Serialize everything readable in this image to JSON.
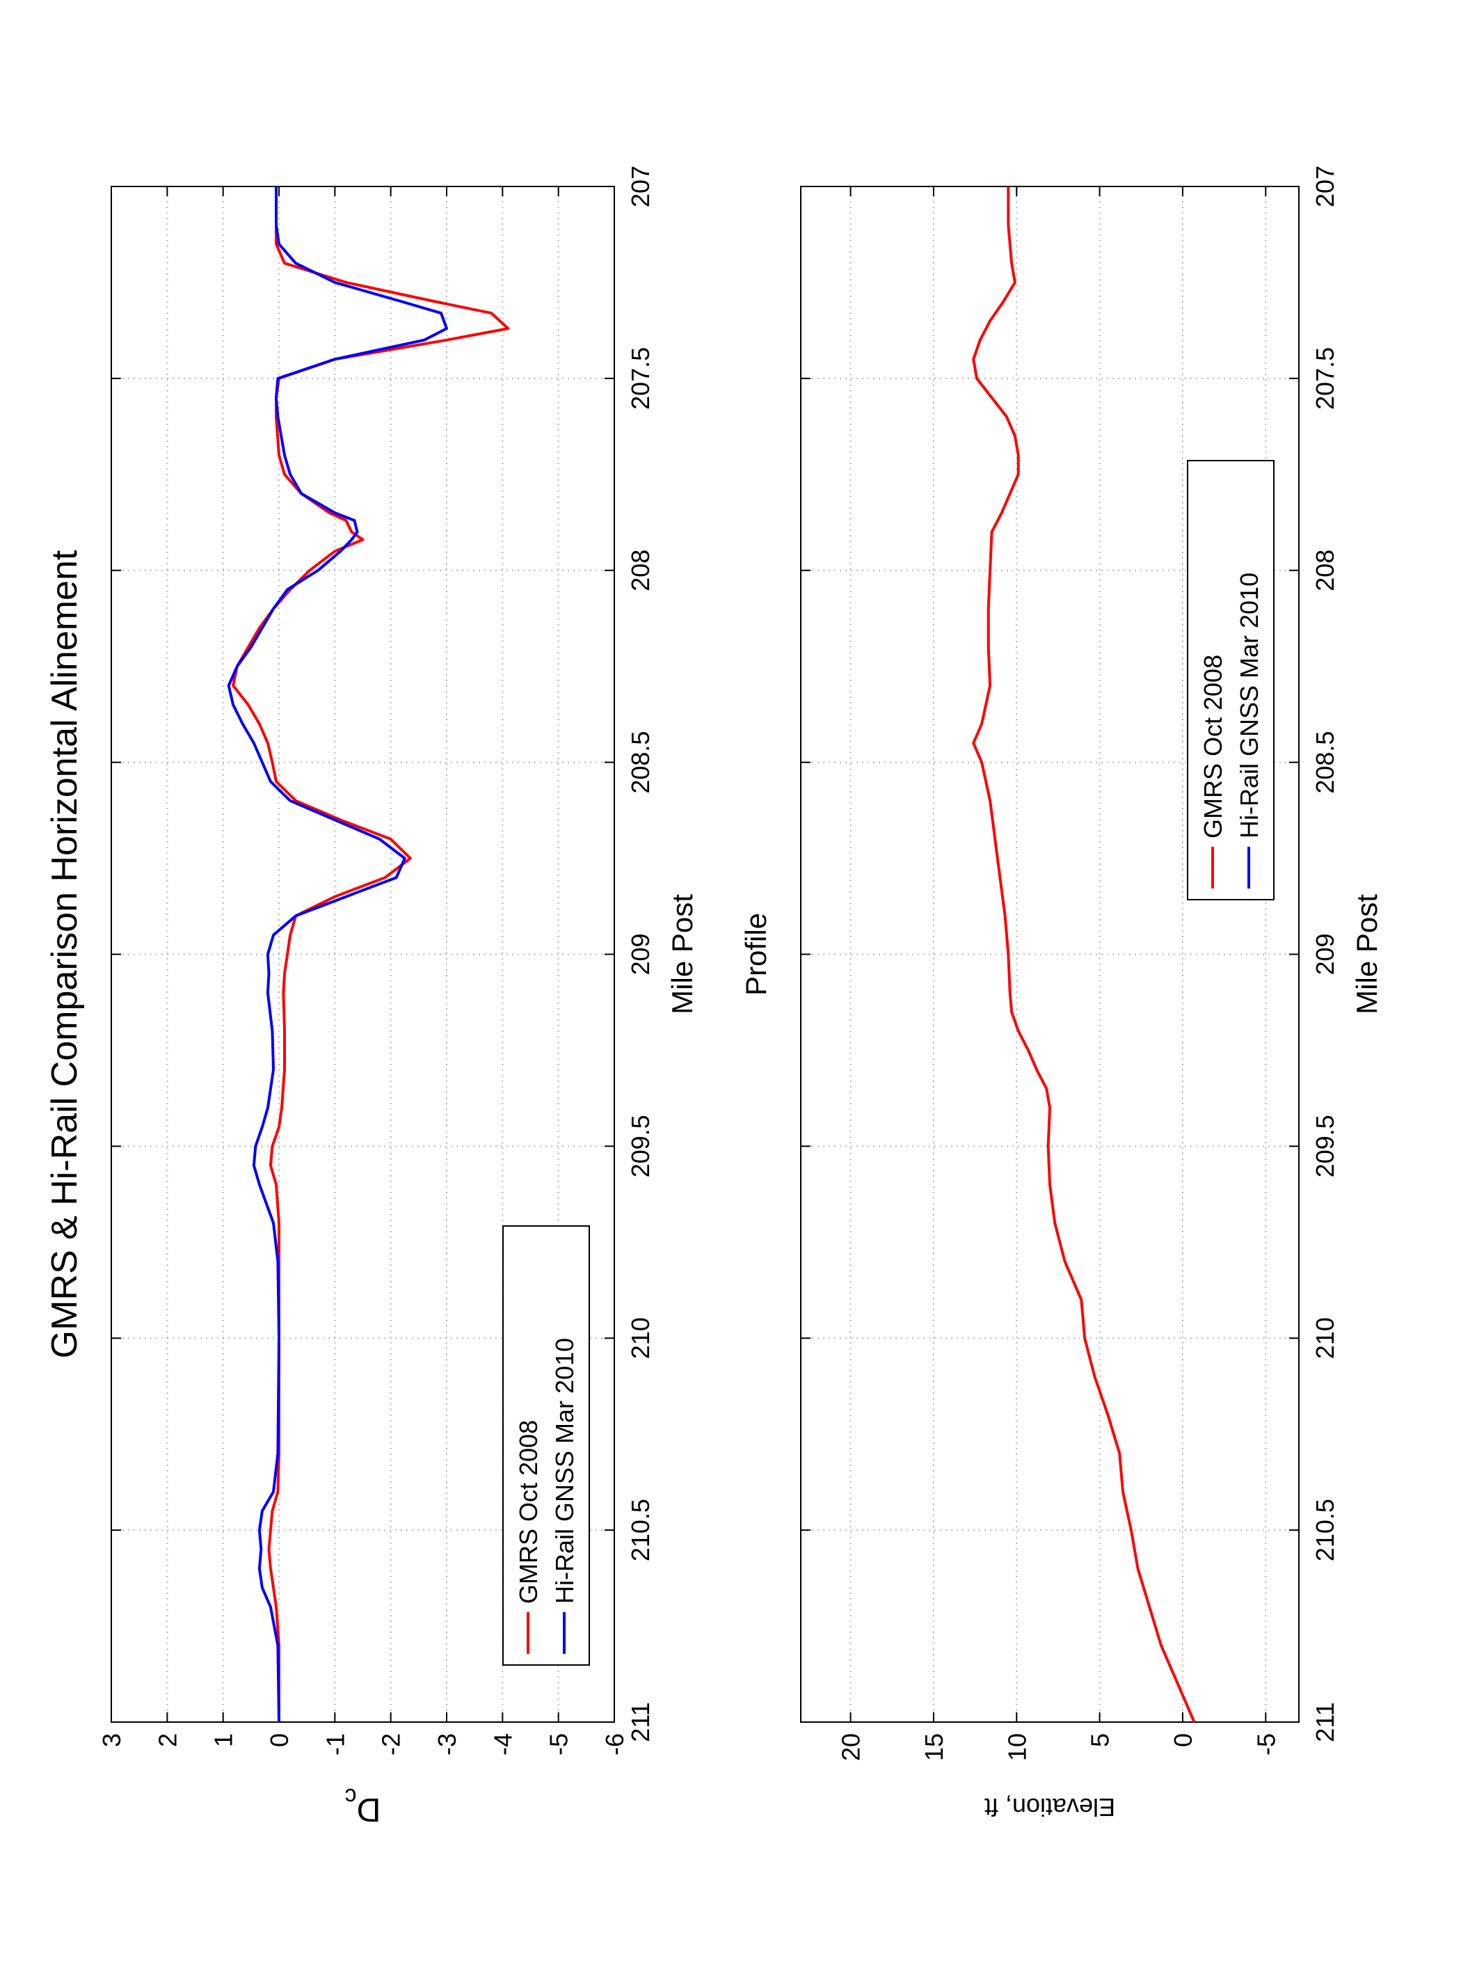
{
  "chart_data": [
    {
      "type": "line",
      "title": "GMRS & Hi-Rail Comparison Horizontal Alinement",
      "xlabel": "Mile Post",
      "ylabel": "D",
      "ylabel_sub": "c",
      "x": [
        211,
        210.8,
        210.7,
        210.65,
        210.6,
        210.55,
        210.5,
        210.45,
        210.4,
        210.3,
        210.0,
        209.8,
        209.7,
        209.6,
        209.55,
        209.5,
        209.45,
        209.4,
        209.3,
        209.2,
        209.1,
        209.05,
        209.0,
        208.95,
        208.9,
        208.85,
        208.8,
        208.75,
        208.7,
        208.65,
        208.6,
        208.55,
        208.5,
        208.45,
        208.4,
        208.35,
        208.3,
        208.25,
        208.2,
        208.15,
        208.1,
        208.05,
        208.0,
        207.95,
        207.92,
        207.9,
        207.87,
        207.85,
        207.8,
        207.75,
        207.7,
        207.6,
        207.55,
        207.5,
        207.45,
        207.4,
        207.37,
        207.33,
        207.3,
        207.25,
        207.2,
        207.15,
        207.1,
        207.0
      ],
      "series": [
        {
          "name": "GMRS Oct 2008",
          "color": "#ff0000",
          "values": [
            0,
            0,
            0.05,
            0.1,
            0.15,
            0.18,
            0.15,
            0.12,
            0.02,
            0,
            0,
            0,
            0,
            0.05,
            0.15,
            0.12,
            0.0,
            -0.05,
            -0.1,
            -0.1,
            -0.08,
            -0.1,
            -0.15,
            -0.2,
            -0.3,
            -1.0,
            -1.9,
            -2.35,
            -2.0,
            -1.1,
            -0.3,
            0.05,
            0.12,
            0.2,
            0.35,
            0.55,
            0.82,
            0.75,
            0.55,
            0.35,
            0.1,
            -0.2,
            -0.55,
            -1.0,
            -1.5,
            -1.3,
            -1.2,
            -0.9,
            -0.4,
            -0.1,
            0.0,
            0.05,
            0.05,
            0.0,
            -1.0,
            -3.0,
            -4.1,
            -3.8,
            -2.8,
            -1.2,
            -0.1,
            0.05,
            0.05,
            0.05
          ]
        },
        {
          "name": "Hi-Rail GNSS Mar 2010",
          "color": "#0000ff",
          "values": [
            0,
            0.02,
            0.15,
            0.3,
            0.35,
            0.32,
            0.35,
            0.3,
            0.1,
            0.02,
            0,
            0.02,
            0.1,
            0.35,
            0.45,
            0.42,
            0.3,
            0.2,
            0.1,
            0.12,
            0.2,
            0.18,
            0.2,
            0.1,
            -0.3,
            -1.2,
            -2.1,
            -2.25,
            -1.8,
            -1.0,
            -0.2,
            0.15,
            0.3,
            0.45,
            0.65,
            0.82,
            0.9,
            0.75,
            0.5,
            0.3,
            0.1,
            -0.15,
            -0.7,
            -1.1,
            -1.3,
            -1.4,
            -1.35,
            -1.0,
            -0.4,
            -0.2,
            -0.1,
            0.02,
            0.05,
            0.02,
            -1.0,
            -2.6,
            -3.0,
            -2.9,
            -2.2,
            -1.0,
            -0.3,
            0.0,
            0.05,
            0.05
          ]
        }
      ],
      "xlim": [
        211,
        207
      ],
      "xticks": [
        211,
        210.5,
        210,
        209.5,
        209,
        208.5,
        208,
        207.5,
        207
      ],
      "ylim": [
        -6,
        3
      ],
      "yticks": [
        3,
        2,
        1,
        0,
        -1,
        -2,
        -3,
        -4,
        -5,
        -6
      ],
      "grid": true,
      "legend": "lower left"
    },
    {
      "type": "line",
      "title": "Profile",
      "xlabel": "Mile Post",
      "ylabel": "Elevation, ft",
      "x": [
        211,
        210.9,
        210.8,
        210.7,
        210.6,
        210.5,
        210.4,
        210.3,
        210.2,
        210.1,
        210.0,
        209.9,
        209.8,
        209.7,
        209.6,
        209.5,
        209.4,
        209.35,
        209.3,
        209.25,
        209.2,
        209.15,
        209.1,
        209.0,
        208.9,
        208.8,
        208.7,
        208.6,
        208.5,
        208.45,
        208.4,
        208.3,
        208.2,
        208.1,
        208.0,
        207.9,
        207.85,
        207.8,
        207.75,
        207.7,
        207.65,
        207.6,
        207.55,
        207.5,
        207.45,
        207.4,
        207.35,
        207.3,
        207.25,
        207.2,
        207.1,
        207.0
      ],
      "series": [
        {
          "name": "GMRS Oct 2008",
          "color": "#ff0000",
          "values": [
            -0.7,
            0.3,
            1.3,
            2.0,
            2.7,
            3.1,
            3.6,
            3.8,
            4.5,
            5.3,
            5.9,
            6.1,
            7.1,
            7.7,
            8.0,
            8.1,
            8.0,
            8.2,
            8.8,
            9.3,
            9.9,
            10.3,
            10.4,
            10.5,
            10.7,
            11.0,
            11.3,
            11.6,
            12.1,
            12.6,
            12.1,
            11.6,
            11.7,
            11.7,
            11.6,
            11.5,
            10.9,
            10.4,
            9.9,
            9.9,
            10.1,
            10.6,
            11.5,
            12.4,
            12.6,
            12.2,
            11.6,
            10.8,
            10.1,
            10.3,
            10.5,
            10.5
          ]
        },
        {
          "name": "Hi-Rail GNSS Mar 2010",
          "color": "#0000ff",
          "values": [
            null,
            null,
            null,
            null,
            null,
            null,
            null,
            null,
            null,
            null,
            null,
            null,
            null,
            null,
            null,
            null,
            null,
            null,
            null,
            null,
            null,
            null,
            null,
            null,
            null,
            null,
            null,
            null,
            null,
            null,
            null,
            null,
            null,
            null,
            null,
            null,
            null,
            null,
            null,
            null,
            null,
            null,
            null,
            null,
            null,
            null,
            null,
            null,
            null,
            null,
            null,
            null
          ]
        }
      ],
      "xlim": [
        211,
        207
      ],
      "xticks": [
        211,
        210.5,
        210,
        209.5,
        209,
        208.5,
        208,
        207.5,
        207
      ],
      "ylim": [
        -7,
        23
      ],
      "yticks": [
        -5,
        0,
        5,
        10,
        15,
        20
      ],
      "grid": true,
      "legend": "lower right"
    }
  ]
}
